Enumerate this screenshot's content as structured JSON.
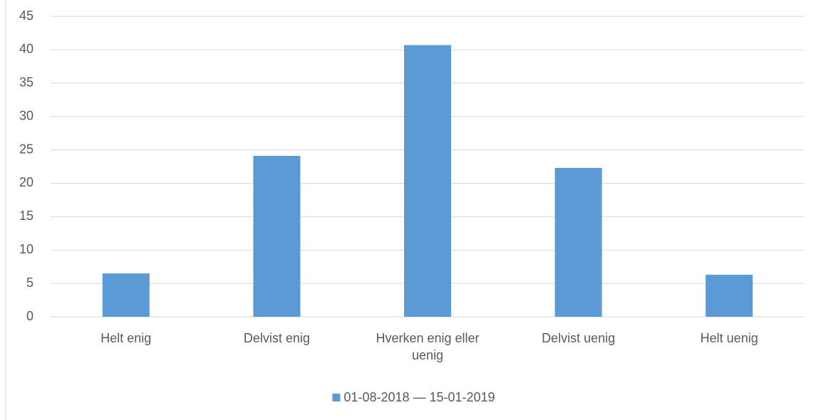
{
  "chart_data": {
    "type": "bar",
    "categories": [
      "Helt enig",
      "Delvist enig",
      "Hverken enig eller uenig",
      "Delvist uenig",
      "Helt uenig"
    ],
    "series": [
      {
        "name": "01-08-2018 — 15-01-2019",
        "color": "#5b9bd5",
        "values": [
          6.5,
          24.1,
          40.7,
          22.3,
          6.3
        ]
      }
    ],
    "ylim": [
      0,
      45
    ],
    "yticks": [
      0,
      5,
      10,
      15,
      20,
      25,
      30,
      35,
      40,
      45
    ],
    "grid": true,
    "legend": "bottom"
  }
}
